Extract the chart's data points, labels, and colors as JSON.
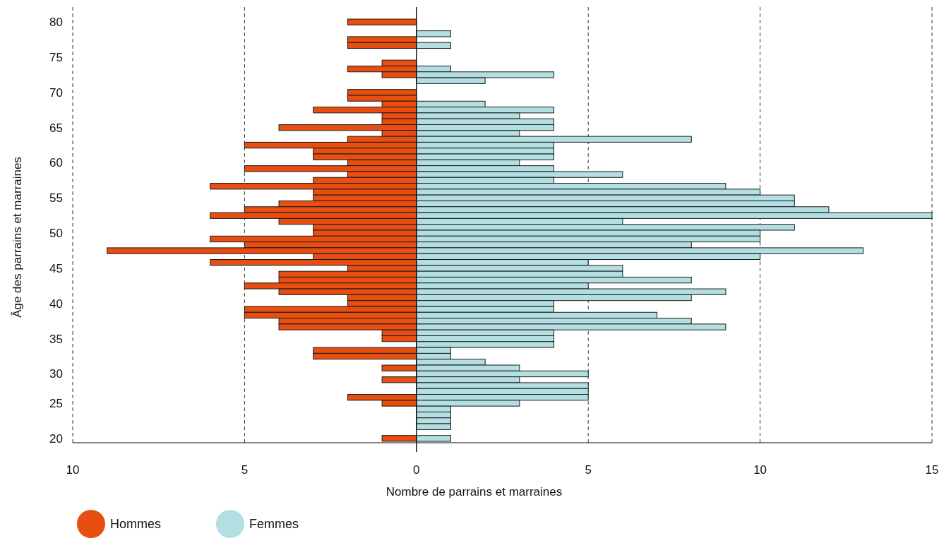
{
  "chart_data": {
    "type": "bar",
    "orientation": "horizontal",
    "xlabel": "Nombre de parrains et marraines",
    "ylabel": "Âge des parrains et marraines",
    "categories": [
      "80",
      null,
      null,
      null,
      null,
      null,
      "75",
      null,
      null,
      null,
      null,
      null,
      "70",
      null,
      null,
      null,
      null,
      null,
      "65",
      null,
      null,
      null,
      null,
      null,
      "60",
      null,
      null,
      null,
      null,
      null,
      "55",
      null,
      null,
      null,
      null,
      null,
      "50",
      null,
      null,
      null,
      null,
      null,
      "45",
      null,
      null,
      null,
      null,
      null,
      "40",
      null,
      null,
      null,
      null,
      null,
      "35",
      null,
      null,
      null,
      null,
      null,
      "30",
      null,
      null,
      null,
      null,
      "25",
      null,
      null,
      null,
      null,
      null,
      "20"
    ],
    "series": [
      {
        "name": "Hommes",
        "color": "#e84e0f",
        "values": [
          -2,
          null,
          null,
          -2,
          -2,
          null,
          null,
          -1,
          -2,
          -1,
          null,
          null,
          -2,
          -2,
          -1,
          -3,
          -1,
          -1,
          -4,
          -1,
          -2,
          -5,
          -3,
          -3,
          -2,
          -5,
          -2,
          -3,
          -6,
          -3,
          -3,
          -4,
          -5,
          -6,
          -4,
          -3,
          -3,
          -6,
          -5,
          -9,
          -3,
          -6,
          -2,
          -4,
          -4,
          -5,
          -4,
          -2,
          -2,
          -5,
          -5,
          -4,
          -4,
          -1,
          -1,
          null,
          -3,
          -3,
          null,
          -1,
          null,
          -1,
          null,
          null,
          -2,
          -1,
          null,
          null,
          null,
          null,
          null,
          -1
        ]
      },
      {
        "name": "Femmes",
        "color": "#b3dfe3",
        "values": [
          null,
          null,
          1,
          null,
          1,
          null,
          null,
          null,
          1,
          4,
          2,
          null,
          null,
          null,
          2,
          4,
          3,
          4,
          4,
          3,
          8,
          4,
          4,
          4,
          3,
          4,
          6,
          4,
          9,
          10,
          11,
          11,
          12,
          15,
          6,
          11,
          10,
          10,
          8,
          13,
          10,
          5,
          6,
          6,
          8,
          5,
          9,
          8,
          4,
          4,
          7,
          8,
          9,
          4,
          4,
          4,
          1,
          1,
          2,
          3,
          5,
          3,
          5,
          5,
          5,
          3,
          1,
          1,
          1,
          1,
          null,
          1
        ]
      }
    ],
    "xlim": [
      -10,
      15
    ],
    "xticks": [
      {
        "value": -10,
        "label": "10"
      },
      {
        "value": -5,
        "label": "5"
      },
      0,
      5,
      10,
      15
    ],
    "stacked": true,
    "grid": "x",
    "legend": "bottom left"
  }
}
